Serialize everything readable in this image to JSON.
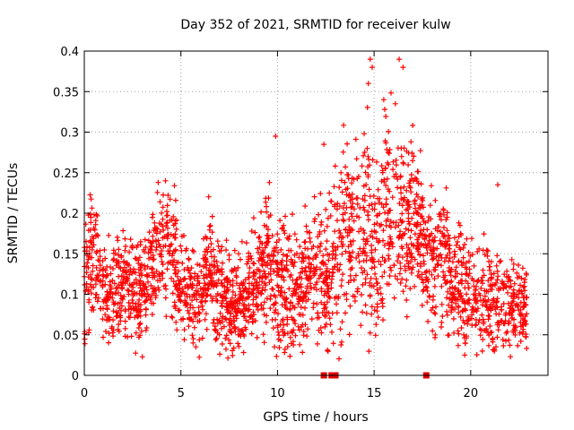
{
  "chart_data": {
    "type": "scatter",
    "title": "Day 352 of 2021, SRMTID for receiver kulw",
    "xlabel": "GPS time / hours",
    "ylabel": "SRMTID / TECUs",
    "xlim": [
      0,
      24
    ],
    "ylim": [
      0,
      0.4
    ],
    "x_ticks": [
      0,
      5,
      10,
      15,
      20
    ],
    "x_tick_labels": [
      "0",
      "5",
      "10",
      "15",
      "20"
    ],
    "y_ticks": [
      0,
      0.05,
      0.1,
      0.15,
      0.2,
      0.25,
      0.3,
      0.35,
      0.4
    ],
    "y_tick_labels": [
      "0",
      "0.05",
      "0.1",
      "0.15",
      "0.2",
      "0.25",
      "0.3",
      "0.35",
      "0.4"
    ],
    "grid": true,
    "marker_color": "#ff0000",
    "zero_markers_x": [
      12.4,
      12.8,
      13.0,
      17.7
    ],
    "trend": {
      "x": [
        0,
        0.5,
        1,
        2,
        3,
        3.5,
        4,
        4.5,
        5,
        6,
        6.5,
        7,
        8,
        9,
        9.5,
        10,
        11,
        12,
        12.5,
        13,
        13.5,
        14,
        14.5,
        15,
        15.5,
        16,
        16.5,
        17,
        17.5,
        18,
        18.5,
        19,
        20,
        21,
        22,
        23
      ],
      "center": [
        0.11,
        0.15,
        0.1,
        0.11,
        0.1,
        0.13,
        0.16,
        0.15,
        0.11,
        0.09,
        0.13,
        0.1,
        0.08,
        0.12,
        0.15,
        0.12,
        0.1,
        0.13,
        0.12,
        0.14,
        0.19,
        0.16,
        0.18,
        0.17,
        0.19,
        0.21,
        0.19,
        0.2,
        0.16,
        0.14,
        0.15,
        0.12,
        0.1,
        0.09,
        0.09,
        0.08
      ],
      "spread": [
        0.045,
        0.05,
        0.035,
        0.04,
        0.04,
        0.045,
        0.05,
        0.05,
        0.04,
        0.035,
        0.045,
        0.04,
        0.035,
        0.04,
        0.05,
        0.05,
        0.045,
        0.05,
        0.05,
        0.06,
        0.07,
        0.065,
        0.08,
        0.07,
        0.07,
        0.075,
        0.07,
        0.06,
        0.05,
        0.05,
        0.05,
        0.045,
        0.04,
        0.04,
        0.035,
        0.03
      ]
    },
    "peaks": [
      {
        "x": 4.2,
        "y": 0.24
      },
      {
        "x": 9.9,
        "y": 0.295
      },
      {
        "x": 12.4,
        "y": 0.285
      },
      {
        "x": 14.8,
        "y": 0.39
      },
      {
        "x": 14.9,
        "y": 0.38
      },
      {
        "x": 14.7,
        "y": 0.36
      },
      {
        "x": 16.3,
        "y": 0.39
      },
      {
        "x": 16.5,
        "y": 0.38
      },
      {
        "x": 16.1,
        "y": 0.335
      },
      {
        "x": 15.5,
        "y": 0.34
      },
      {
        "x": 21.4,
        "y": 0.235
      },
      {
        "x": 20.6,
        "y": 0.03
      }
    ]
  }
}
